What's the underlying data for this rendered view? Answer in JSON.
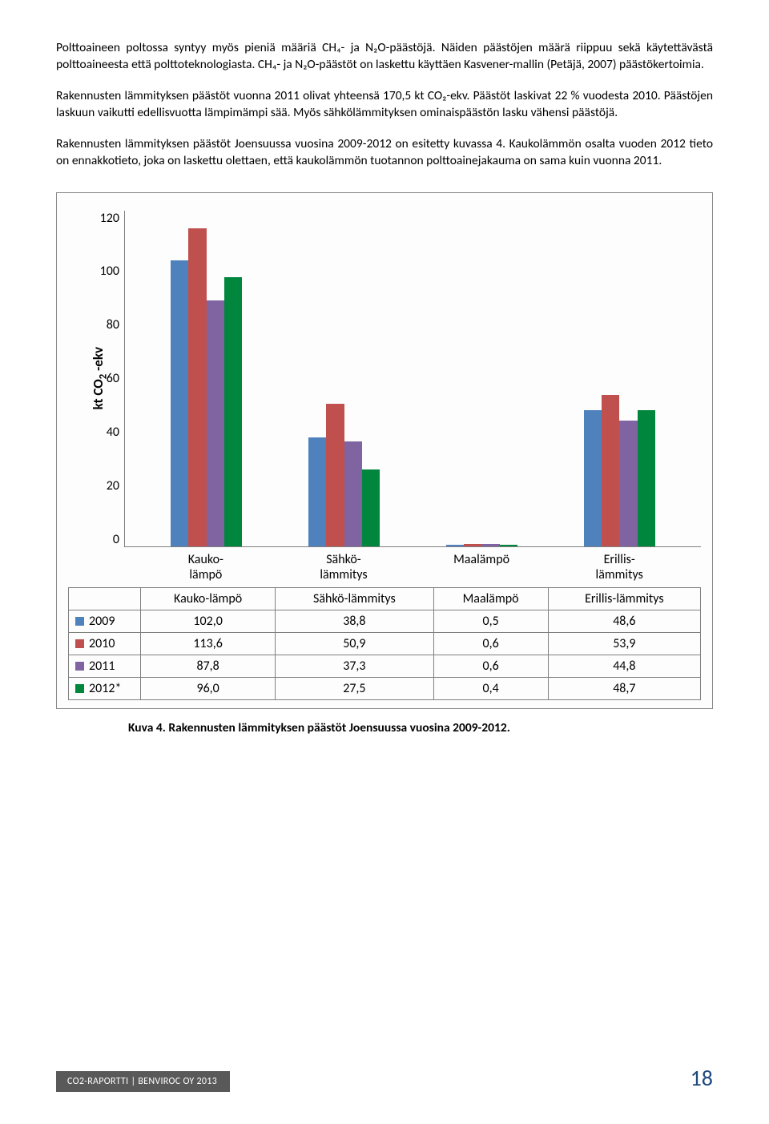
{
  "paragraphs": {
    "p1": "Polttoaineen poltossa syntyy myös pieniä määriä CH₄- ja N₂O-päästöjä. Näiden päästöjen määrä riippuu sekä käytettävästä polttoaineesta että polttoteknologiasta. CH₄- ja N₂O-päästöt on laskettu käyttäen Kasvener-mallin (Petäjä, 2007) päästökertoimia.",
    "p2": "Rakennusten lämmityksen päästöt vuonna 2011 olivat yhteensä 170,5 kt CO₂-ekv. Päästöt laskivat 22 % vuodesta 2010. Päästöjen laskuun vaikutti edellisvuotta lämpimämpi sää. Myös sähkölämmityksen ominaispäästön lasku vähensi päästöjä.",
    "p3": "Rakennusten lämmityksen päästöt Joensuussa vuosina 2009-2012 on esitetty kuvassa 4. Kaukolämmön osalta vuoden 2012 tieto on ennakkotieto, joka on laskettu olettaen, että kaukolämmön tuotannon polttoainejakauma on sama kuin vuonna 2011."
  },
  "chart": {
    "type": "bar",
    "ylabel_html": "kt CO<sub>2</sub> -ekv",
    "ylim": [
      0,
      120
    ],
    "ytick_step": 20,
    "yticks": [
      "120",
      "100",
      "80",
      "60",
      "40",
      "20",
      "0"
    ],
    "categories": [
      {
        "key": "kauko",
        "label_html": "Kauko-<br>lämpö"
      },
      {
        "key": "sahko",
        "label_html": "Sähkö-<br>lämmitys"
      },
      {
        "key": "maa",
        "label_html": "Maalämpö"
      },
      {
        "key": "erillis",
        "label_html": "Erillis-<br>lämmitys"
      }
    ],
    "series": [
      {
        "year": "2009",
        "color": "#4f81bd",
        "values": [
          102.0,
          38.8,
          0.5,
          48.6
        ],
        "display": [
          "102,0",
          "38,8",
          "0,5",
          "48,6"
        ]
      },
      {
        "year": "2010",
        "color": "#c0504d",
        "values": [
          113.6,
          50.9,
          0.6,
          53.9
        ],
        "display": [
          "113,6",
          "50,9",
          "0,6",
          "53,9"
        ]
      },
      {
        "year": "2011",
        "color": "#8064a2",
        "values": [
          87.8,
          37.3,
          0.6,
          44.8
        ],
        "display": [
          "87,8",
          "37,3",
          "0,6",
          "44,8"
        ]
      },
      {
        "year": "2012*",
        "color": "#00863d",
        "values": [
          96.0,
          27.5,
          0.4,
          48.7
        ],
        "display": [
          "96,0",
          "27,5",
          "0,4",
          "48,7"
        ]
      }
    ],
    "background_color": "#fdfdfd",
    "border_color": "#888888",
    "axis_color": "#7f7f7f",
    "label_fontsize": 16
  },
  "caption": "Kuva 4. Rakennusten lämmityksen päästöt Joensuussa vuosina 2009-2012.",
  "footer": {
    "label": "CO2-RAPORTTI | BENVIROC OY 2013",
    "page": "18",
    "bar_color": "#595959",
    "page_color": "#1f497d"
  }
}
